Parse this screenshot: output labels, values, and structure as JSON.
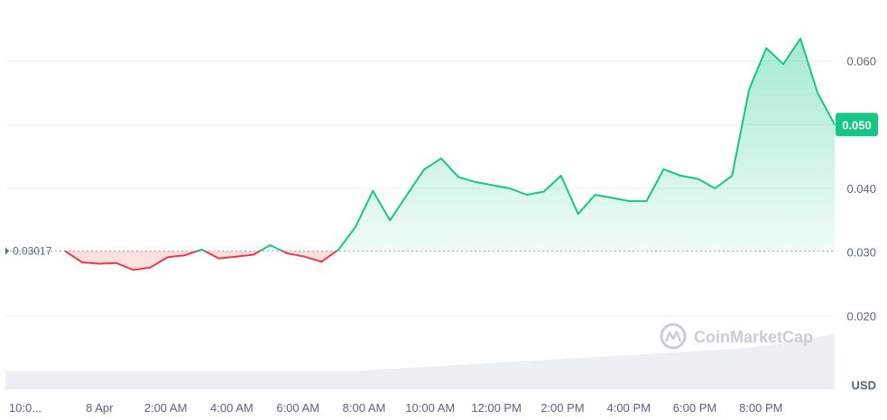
{
  "chart_data": {
    "type": "area",
    "ylim": [
      0.013,
      0.067
    ],
    "yticks": [
      "0.060",
      "0.050",
      "0.040",
      "0.030",
      "0.020"
    ],
    "xticks": [
      "10:0...",
      "8 Apr",
      "2:00 AM",
      "4:00 AM",
      "6:00 AM",
      "8:00 AM",
      "10:00 AM",
      "12:00 PM",
      "2:00 PM",
      "4:00 PM",
      "6:00 PM",
      "8:00 PM"
    ],
    "currency": "USD",
    "baseline": {
      "value": 0.03017,
      "label": "0.03017"
    },
    "current_price": {
      "value": 0.05,
      "label": "0.050"
    },
    "watermark": "CoinMarketCap",
    "colors": {
      "up": "#16c784",
      "down": "#ea3943",
      "grid": "#eff2f5",
      "text": "#58667e",
      "volume": "#eceff3"
    },
    "series": [
      {
        "x": [
          "~22:00",
          "~00:00",
          "~00:30",
          "~01:00",
          "~01:30",
          "~02:00",
          "~02:30",
          "~03:00",
          "~03:30",
          "~04:00",
          "~04:30",
          "~05:00",
          "~05:30",
          "~06:00",
          "~06:30",
          "~07:00",
          "~07:30",
          "~08:00",
          "~08:30",
          "~09:00",
          "~09:30",
          "~10:00",
          "~10:30",
          "~11:00",
          "~11:30",
          "~12:00",
          "~12:30",
          "~13:00",
          "~13:30",
          "~14:00",
          "~14:30",
          "~15:00",
          "~15:30",
          "~16:00",
          "~16:30",
          "~17:00",
          "~17:30",
          "~18:00",
          "~18:30",
          "~19:00",
          "~19:30",
          "~20:00",
          "~20:30",
          "~21:00",
          "~21:30",
          "~22:00"
        ],
        "values": [
          0.03017,
          0.0284,
          0.0282,
          0.0283,
          0.0272,
          0.0276,
          0.0292,
          0.0295,
          0.0304,
          0.029,
          0.0293,
          0.0296,
          0.0311,
          0.0298,
          0.0293,
          0.0285,
          0.0304,
          0.034,
          0.0396,
          0.035,
          0.039,
          0.043,
          0.0447,
          0.0418,
          0.041,
          0.0405,
          0.04,
          0.039,
          0.0395,
          0.042,
          0.036,
          0.039,
          0.0385,
          0.038,
          0.038,
          0.043,
          0.042,
          0.0415,
          0.04,
          0.042,
          0.0555,
          0.062,
          0.0595,
          0.0635,
          0.055,
          0.05
        ]
      }
    ],
    "volume": [
      0.5,
      0.5,
      0.5,
      0.5,
      0.5,
      0.5,
      0.5,
      0.5,
      0.5,
      0.5,
      0.5,
      0.5,
      0.55,
      0.6,
      0.65,
      0.7,
      0.75,
      0.8,
      0.85,
      0.9,
      0.95,
      1.0,
      1.05,
      1.1,
      1.2,
      1.35,
      1.5
    ]
  }
}
